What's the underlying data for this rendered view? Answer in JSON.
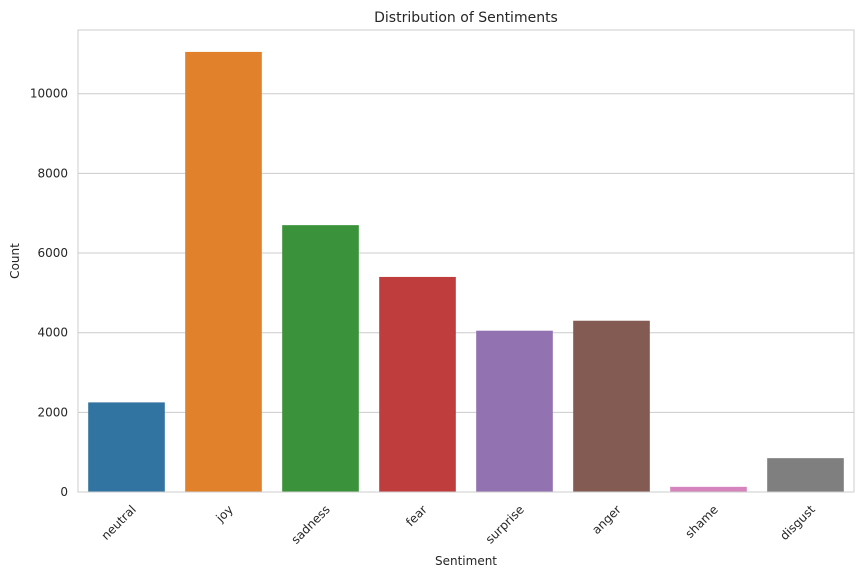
{
  "chart_data": {
    "type": "bar",
    "title": "Distribution of Sentiments",
    "xlabel": "Sentiment",
    "ylabel": "Count",
    "categories": [
      "neutral",
      "joy",
      "sadness",
      "fear",
      "surprise",
      "anger",
      "shame",
      "disgust"
    ],
    "values": [
      2250,
      11050,
      6700,
      5400,
      4050,
      4300,
      130,
      850
    ],
    "colors": [
      "#3274a1",
      "#e1812c",
      "#3a923a",
      "#c03d3e",
      "#9372b2",
      "#845b53",
      "#d684bd",
      "#7f7f7f"
    ],
    "ylim": [
      0,
      11600
    ],
    "yticks": [
      0,
      2000,
      4000,
      6000,
      8000,
      10000
    ],
    "grid": true,
    "xtick_rotation": 45
  }
}
